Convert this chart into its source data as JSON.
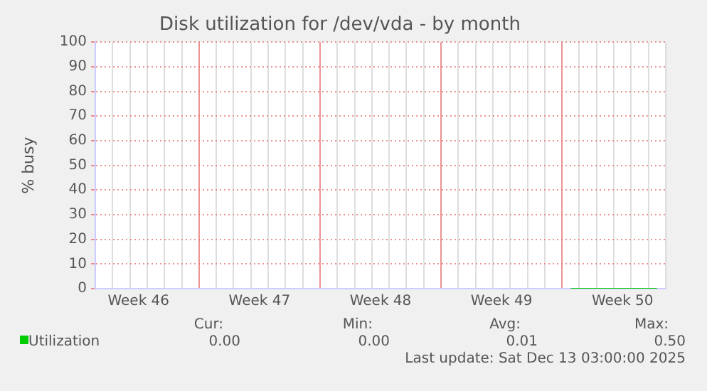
{
  "chart_data": {
    "type": "line",
    "title": "Disk utilization for /dev/vda - by month",
    "ylabel": "% busy",
    "categories": [
      null,
      null,
      "Week 46",
      null,
      null,
      null,
      null,
      null,
      null,
      "Week 47",
      null,
      null,
      null,
      null,
      null,
      null,
      "Week 48",
      null,
      null,
      null,
      null,
      null,
      null,
      "Week 49",
      null,
      null,
      null,
      null,
      null,
      null,
      "Week 50",
      null,
      null
    ],
    "series": [
      {
        "name": "Utilization",
        "color": "#00cc00",
        "values": [
          null,
          null,
          null,
          null,
          null,
          null,
          null,
          null,
          null,
          null,
          null,
          null,
          null,
          null,
          null,
          null,
          null,
          null,
          null,
          null,
          null,
          null,
          null,
          null,
          null,
          null,
          null,
          0,
          0,
          0,
          0,
          0,
          0
        ]
      }
    ],
    "ylim": [
      0,
      100
    ],
    "yticks": [
      0,
      10,
      20,
      30,
      40,
      50,
      60,
      70,
      80,
      90,
      100
    ],
    "grid": true,
    "legend": "bottom left",
    "marker": "none",
    "annotations": [
      "Cur:",
      "0.00",
      "Min:",
      "0.00",
      "Avg:",
      "0.01",
      "Max:",
      "0.50",
      "Last update: Sat Dec 13 03:00:00 2025"
    ]
  }
}
